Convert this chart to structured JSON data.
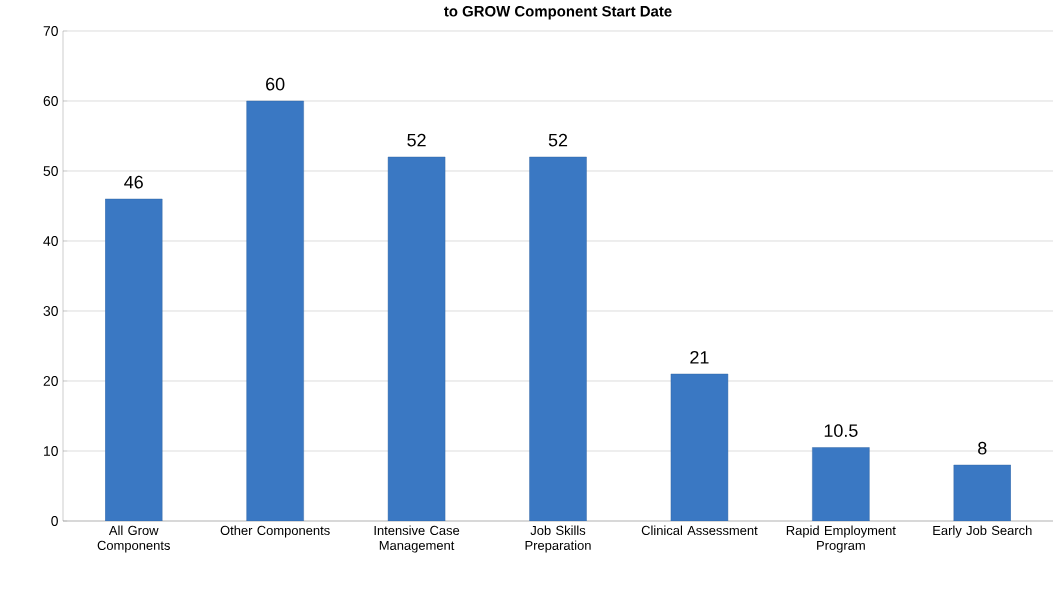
{
  "chart_data": {
    "type": "bar",
    "title": "to GROW Component Start Date",
    "categories": [
      "All Grow Components",
      "Other Components",
      "Intensive Case Management",
      "Job Skills Preparation",
      "Clinical Assessment",
      "Rapid Employment Program",
      "Early Job Search"
    ],
    "values": [
      46,
      60,
      52,
      52,
      21,
      10.5,
      8
    ],
    "color": "#3a78c3",
    "ylim": [
      0,
      70
    ],
    "yticks": [
      0,
      10,
      20,
      30,
      40,
      50,
      60,
      70
    ],
    "grid": "y",
    "data_labels": true
  }
}
